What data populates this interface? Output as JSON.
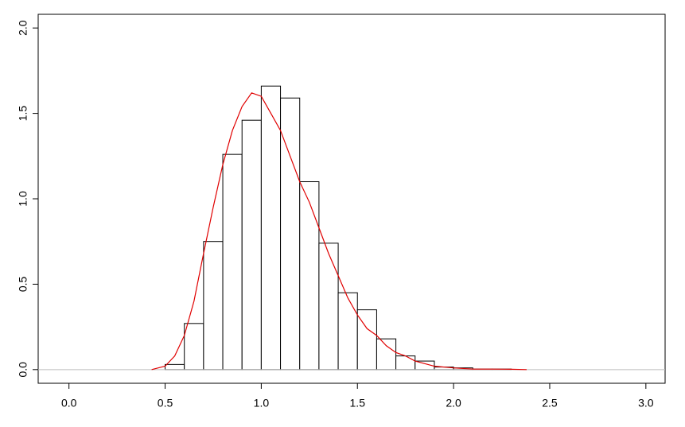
{
  "chart_data": {
    "type": "histogram",
    "bins": [
      0.5,
      0.6,
      0.7,
      0.8,
      0.9,
      1.0,
      1.1,
      1.2,
      1.3,
      1.4,
      1.5,
      1.6,
      1.7,
      1.8,
      1.9,
      2.0,
      2.1,
      2.2,
      2.3
    ],
    "values": [
      0.03,
      0.27,
      0.75,
      1.26,
      1.46,
      1.66,
      1.59,
      1.1,
      0.74,
      0.45,
      0.35,
      0.18,
      0.08,
      0.05,
      0.015,
      0.01,
      0.003,
      0.003
    ],
    "color": "#ffffff",
    "edge_color": "#000000",
    "density": {
      "color": "#e00000",
      "x": [
        0.43,
        0.5,
        0.55,
        0.6,
        0.65,
        0.7,
        0.75,
        0.8,
        0.85,
        0.9,
        0.95,
        1.0,
        1.05,
        1.1,
        1.15,
        1.2,
        1.25,
        1.3,
        1.35,
        1.4,
        1.45,
        1.5,
        1.55,
        1.6,
        1.65,
        1.7,
        1.75,
        1.8,
        1.9,
        2.0,
        2.1,
        2.2,
        2.3,
        2.38
      ],
      "y": [
        0,
        0.02,
        0.08,
        0.2,
        0.4,
        0.68,
        0.95,
        1.2,
        1.4,
        1.54,
        1.62,
        1.6,
        1.5,
        1.4,
        1.25,
        1.1,
        0.98,
        0.83,
        0.68,
        0.55,
        0.42,
        0.32,
        0.24,
        0.2,
        0.14,
        0.1,
        0.08,
        0.05,
        0.02,
        0.01,
        0.003,
        0.003,
        0.002,
        0
      ]
    },
    "baseline": {
      "value": 0,
      "color": "#bebebe"
    },
    "xlim": [
      -0.16,
      3.1
    ],
    "ylim": [
      -0.08,
      2.08
    ],
    "xticks": [
      {
        "value": 0,
        "label": "0.0"
      },
      0.5,
      {
        "value": 1,
        "label": "1.0"
      },
      1.5,
      {
        "value": 2,
        "label": "2.0"
      },
      2.5,
      {
        "value": 3,
        "label": "3.0"
      }
    ],
    "yticks": [
      {
        "value": 0,
        "label": "0.0"
      },
      0.5,
      {
        "value": 1,
        "label": "1.0"
      },
      1.5,
      {
        "value": 2,
        "label": "2.0"
      }
    ]
  }
}
